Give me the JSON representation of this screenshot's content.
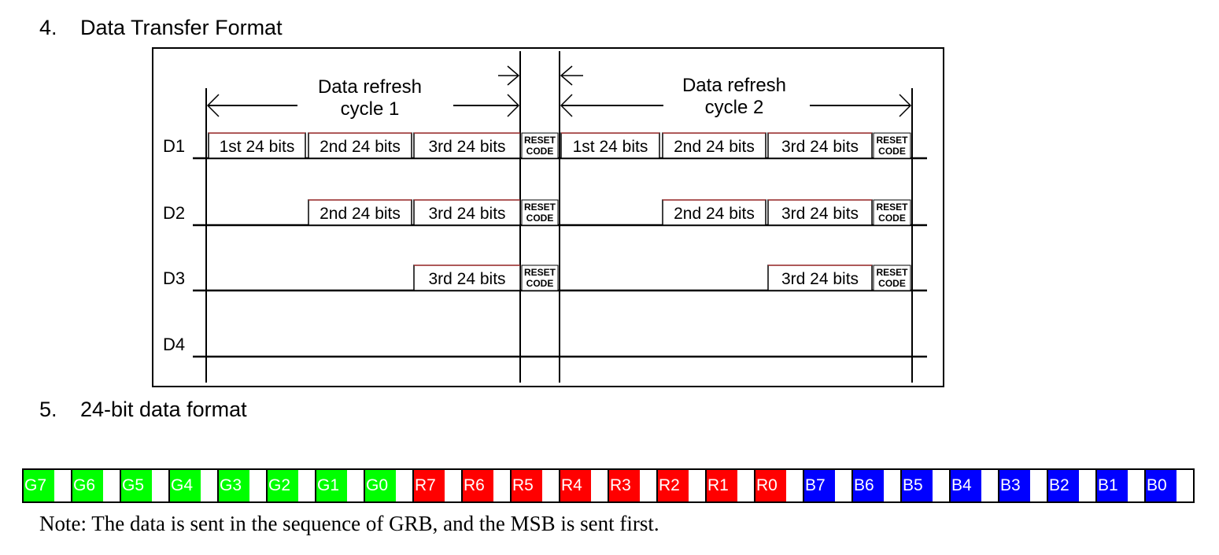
{
  "section4": {
    "number": "4.",
    "title": "Data Transfer Format"
  },
  "section5": {
    "number": "5.",
    "title": "24-bit data format"
  },
  "diagram": {
    "cycle1": {
      "line1": "Data refresh",
      "line2": "cycle 1"
    },
    "cycle2": {
      "line1": "Data refresh",
      "line2": "cycle 2"
    },
    "reset_line1": "RESET",
    "reset_line2": "CODE",
    "rows": [
      {
        "label": "D1",
        "cycle1": [
          "1st 24 bits",
          "2nd 24 bits",
          "3rd 24 bits"
        ],
        "cycle2": [
          "1st 24 bits",
          "2nd 24 bits",
          "3rd 24 bits"
        ]
      },
      {
        "label": "D2",
        "cycle1": [
          "2nd 24 bits",
          "3rd 24 bits"
        ],
        "cycle2": [
          "2nd 24 bits",
          "3rd 24 bits"
        ]
      },
      {
        "label": "D3",
        "cycle1": [
          "3rd 24 bits"
        ],
        "cycle2": [
          "3rd 24 bits"
        ]
      },
      {
        "label": "D4",
        "cycle1": [],
        "cycle2": []
      }
    ]
  },
  "bits": [
    {
      "label": "G7",
      "color": "#00ff00"
    },
    {
      "label": "G6",
      "color": "#00ff00"
    },
    {
      "label": "G5",
      "color": "#00ff00"
    },
    {
      "label": "G4",
      "color": "#00ff00"
    },
    {
      "label": "G3",
      "color": "#00ff00"
    },
    {
      "label": "G2",
      "color": "#00ff00"
    },
    {
      "label": "G1",
      "color": "#00ff00"
    },
    {
      "label": "G0",
      "color": "#00ff00"
    },
    {
      "label": "R7",
      "color": "#ff0000"
    },
    {
      "label": "R6",
      "color": "#ff0000"
    },
    {
      "label": "R5",
      "color": "#ff0000"
    },
    {
      "label": "R4",
      "color": "#ff0000"
    },
    {
      "label": "R3",
      "color": "#ff0000"
    },
    {
      "label": "R2",
      "color": "#ff0000"
    },
    {
      "label": "R1",
      "color": "#ff0000"
    },
    {
      "label": "R0",
      "color": "#ff0000"
    },
    {
      "label": "B7",
      "color": "#0000ff"
    },
    {
      "label": "B6",
      "color": "#0000ff"
    },
    {
      "label": "B5",
      "color": "#0000ff"
    },
    {
      "label": "B4",
      "color": "#0000ff"
    },
    {
      "label": "B3",
      "color": "#0000ff"
    },
    {
      "label": "B2",
      "color": "#0000ff"
    },
    {
      "label": "B1",
      "color": "#0000ff"
    },
    {
      "label": "B0",
      "color": "#0000ff"
    }
  ],
  "note": "Note: The data is sent in the sequence of GRB, and the MSB is sent first."
}
